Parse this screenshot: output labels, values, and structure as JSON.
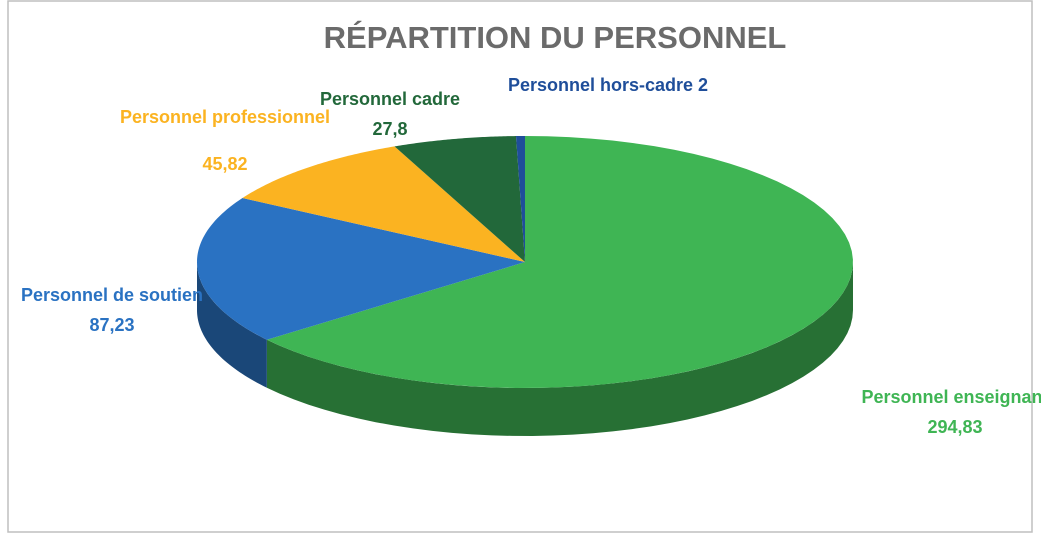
{
  "chart_data": {
    "type": "pie",
    "title": "RÉPARTITION DU PERSONNEL",
    "categories": [
      "Personnel enseignant",
      "Personnel de soutien",
      "Personnel professionnel",
      "Personnel cadre",
      "Personnel hors-cadre"
    ],
    "values": [
      294.83,
      87.23,
      45.82,
      27.8,
      2
    ],
    "value_labels": [
      "294,83",
      "87,23",
      "45,82",
      "27,8",
      "2"
    ],
    "colors": [
      "#3fb554",
      "#2a72c2",
      "#fbb321",
      "#22683a",
      "#1f4e9a"
    ]
  }
}
